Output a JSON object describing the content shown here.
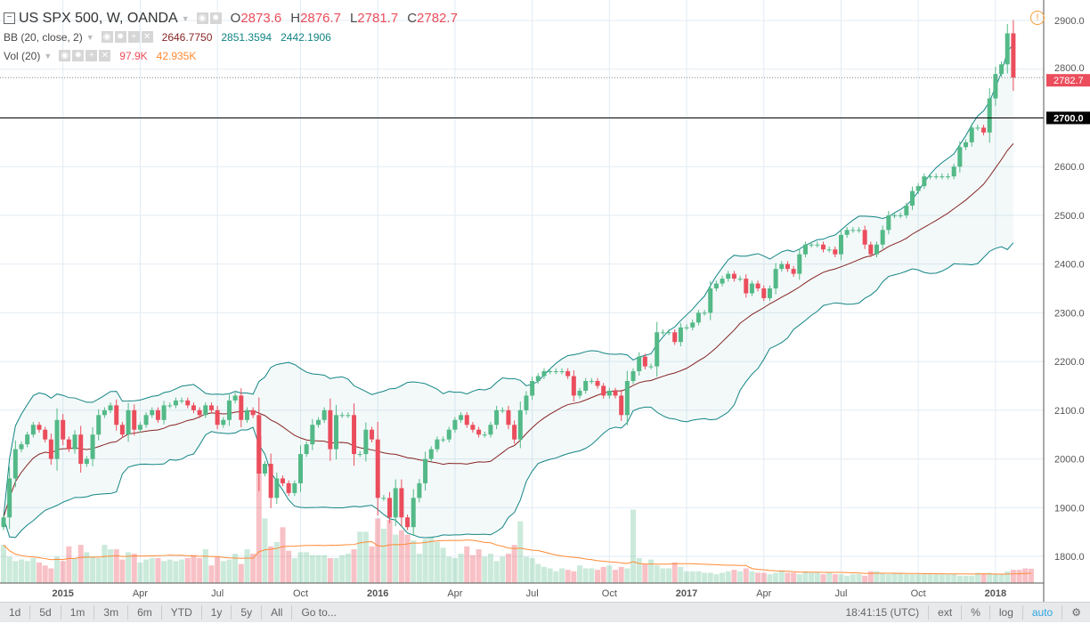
{
  "header": {
    "symbol": "US SPX 500, W, OANDA",
    "o_label": "O",
    "o": "2873.6",
    "h_label": "H",
    "h": "2876.7",
    "l_label": "L",
    "l": "2781.7",
    "c_label": "C",
    "c": "2782.7"
  },
  "bb": {
    "label": "BB (20, close, 2)",
    "basis": "2646.7750",
    "upper": "2851.3594",
    "lower": "2442.1906"
  },
  "vol": {
    "label": "Vol (20)",
    "value": "97.9K",
    "ma": "42.935K"
  },
  "price_axis": {
    "ticks": [
      1800,
      1900,
      2000,
      2100,
      2200,
      2300,
      2400,
      2500,
      2600,
      2700,
      2800,
      2900
    ],
    "current_label": "2782.7",
    "line_label": "2700.0",
    "line_level": 2700
  },
  "time_axis": [
    {
      "label": "2015",
      "index": 10
    },
    {
      "label": "Apr",
      "index": 23
    },
    {
      "label": "Jul",
      "index": 36
    },
    {
      "label": "Oct",
      "index": 50
    },
    {
      "label": "2016",
      "index": 63
    },
    {
      "label": "Apr",
      "index": 76
    },
    {
      "label": "Jul",
      "index": 89
    },
    {
      "label": "Oct",
      "index": 102
    },
    {
      "label": "2017",
      "index": 115
    },
    {
      "label": "Apr",
      "index": 128
    },
    {
      "label": "Jul",
      "index": 141
    },
    {
      "label": "Oct",
      "index": 154
    },
    {
      "label": "2018",
      "index": 167
    }
  ],
  "toolbar": {
    "ranges": [
      "1d",
      "5d",
      "1m",
      "3m",
      "6m",
      "YTD",
      "1y",
      "5y",
      "All"
    ],
    "goto": "Go to...",
    "time": "18:41:15 (UTC)",
    "ext": "ext",
    "pct": "%",
    "log": "log",
    "auto": "auto"
  },
  "colors": {
    "up": "#53b987",
    "down": "#eb4d5c",
    "bb_upper": "#138484",
    "bb_basis": "#872323",
    "vol_ma": "#ff8a33"
  },
  "chart_data": {
    "type": "candlestick",
    "first_open": 1860,
    "closes": [
      1880,
      1960,
      2020,
      2030,
      2050,
      2070,
      2060,
      2040,
      2000,
      2080,
      2040,
      2020,
      2050,
      1990,
      2000,
      2050,
      2090,
      2100,
      2110,
      2070,
      2050,
      2100,
      2060,
      2070,
      2090,
      2100,
      2080,
      2110,
      2110,
      2120,
      2120,
      2110,
      2100,
      2090,
      2110,
      2100,
      2070,
      2080,
      2120,
      2130,
      2080,
      2100,
      2090,
      1970,
      1990,
      1920,
      1960,
      1950,
      1930,
      1950,
      2010,
      2030,
      2070,
      2080,
      2100,
      2020,
      2090,
      2090,
      2090,
      2010,
      2010,
      2060,
      2040,
      1920,
      1920,
      1880,
      1940,
      1880,
      1860,
      1920,
      1950,
      2000,
      2020,
      2040,
      2040,
      2060,
      2080,
      2090,
      2070,
      2060,
      2050,
      2050,
      2070,
      2100,
      2100,
      2070,
      2040,
      2100,
      2130,
      2160,
      2170,
      2180,
      2180,
      2180,
      2180,
      2170,
      2130,
      2140,
      2160,
      2160,
      2150,
      2130,
      2140,
      2130,
      2090,
      2160,
      2180,
      2210,
      2190,
      2190,
      2260,
      2260,
      2260,
      2240,
      2270,
      2270,
      2280,
      2300,
      2300,
      2350,
      2360,
      2370,
      2380,
      2370,
      2370,
      2340,
      2360,
      2350,
      2330,
      2350,
      2390,
      2400,
      2390,
      2380,
      2420,
      2440,
      2440,
      2440,
      2430,
      2430,
      2420,
      2460,
      2470,
      2470,
      2470,
      2440,
      2420,
      2440,
      2470,
      2500,
      2500,
      2500,
      2520,
      2550,
      2560,
      2580,
      2580,
      2580,
      2580,
      2580,
      2600,
      2640,
      2650,
      2680,
      2680,
      2670,
      2740,
      2790,
      2810,
      2873.6,
      2782.7
    ],
    "volumes_k": [
      260,
      180,
      150,
      160,
      150,
      170,
      140,
      120,
      100,
      180,
      150,
      250,
      170,
      260,
      210,
      180,
      170,
      260,
      230,
      230,
      160,
      210,
      200,
      140,
      160,
      170,
      170,
      150,
      160,
      150,
      160,
      170,
      190,
      170,
      230,
      120,
      180,
      150,
      160,
      200,
      130,
      230,
      200,
      1000,
      440,
      250,
      280,
      380,
      220,
      170,
      210,
      210,
      190,
      190,
      190,
      170,
      170,
      190,
      200,
      230,
      350,
      350,
      250,
      440,
      370,
      430,
      330,
      360,
      330,
      290,
      200,
      300,
      310,
      280,
      240,
      180,
      170,
      200,
      250,
      190,
      230,
      180,
      200,
      150,
      180,
      200,
      260,
      420,
      180,
      170,
      130,
      110,
      100,
      80,
      100,
      90,
      80,
      120,
      100,
      100,
      90,
      110,
      120,
      90,
      110,
      100,
      500,
      170,
      130,
      160,
      120,
      100,
      100,
      140,
      110,
      80,
      80,
      80,
      70,
      70,
      60,
      70,
      80,
      90,
      80,
      100,
      80,
      70,
      70,
      60,
      70,
      80,
      70,
      70,
      60,
      80,
      70,
      70,
      60,
      70,
      60,
      60,
      50,
      60,
      60,
      50,
      80,
      80,
      70,
      60,
      70,
      70,
      60,
      60,
      60,
      60,
      60,
      60,
      60,
      60,
      60,
      50,
      50,
      50,
      70,
      60,
      70,
      60,
      60,
      80,
      90,
      90,
      100,
      97.9
    ]
  }
}
